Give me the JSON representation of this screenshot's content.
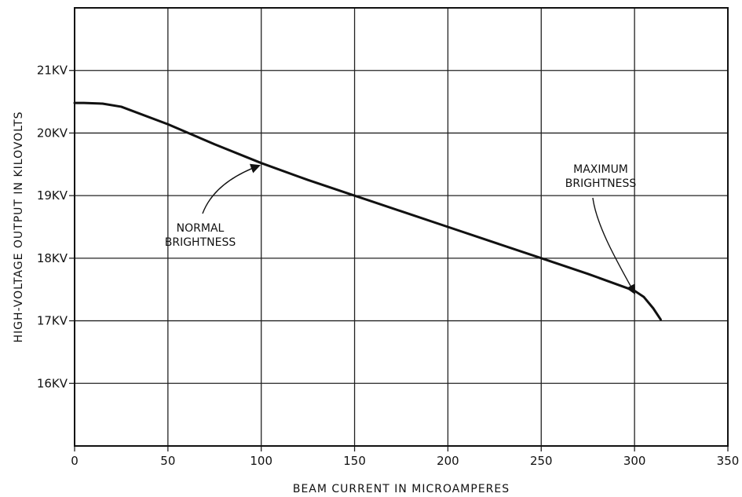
{
  "chart_data": {
    "type": "line",
    "xlabel": "BEAM CURRENT IN MICROAMPERES",
    "ylabel": "HIGH-VOLTAGE OUTPUT IN KILOVOLTS",
    "xlim": [
      0,
      350
    ],
    "ylim": [
      15,
      22
    ],
    "grid": true,
    "x_ticks": [
      0,
      50,
      100,
      150,
      200,
      250,
      300,
      350
    ],
    "x_tick_labels": [
      "0",
      "50",
      "100",
      "150",
      "200",
      "250",
      "300",
      "350"
    ],
    "y_ticks": [
      16,
      17,
      18,
      19,
      20,
      21
    ],
    "y_tick_labels": [
      "16KV",
      "17KV",
      "18KV",
      "19KV",
      "20KV",
      "21KV"
    ],
    "series": [
      {
        "x": [
          0,
          5,
          15,
          25,
          50,
          75,
          100,
          125,
          150,
          175,
          200,
          225,
          250,
          275,
          300,
          305,
          310,
          314
        ],
        "y": [
          20.48,
          20.48,
          20.47,
          20.42,
          20.14,
          19.82,
          19.52,
          19.25,
          19.0,
          18.75,
          18.5,
          18.25,
          18.0,
          17.75,
          17.48,
          17.38,
          17.2,
          17.02
        ]
      }
    ],
    "annotations": [
      {
        "lines": [
          "NORMAL",
          "BRIGHTNESS"
        ],
        "points_to": {
          "x": 100,
          "y": 19.52
        }
      },
      {
        "lines": [
          "MAXIMUM",
          "BRIGHTNESS"
        ],
        "points_to": {
          "x": 301,
          "y": 17.47
        }
      }
    ]
  }
}
